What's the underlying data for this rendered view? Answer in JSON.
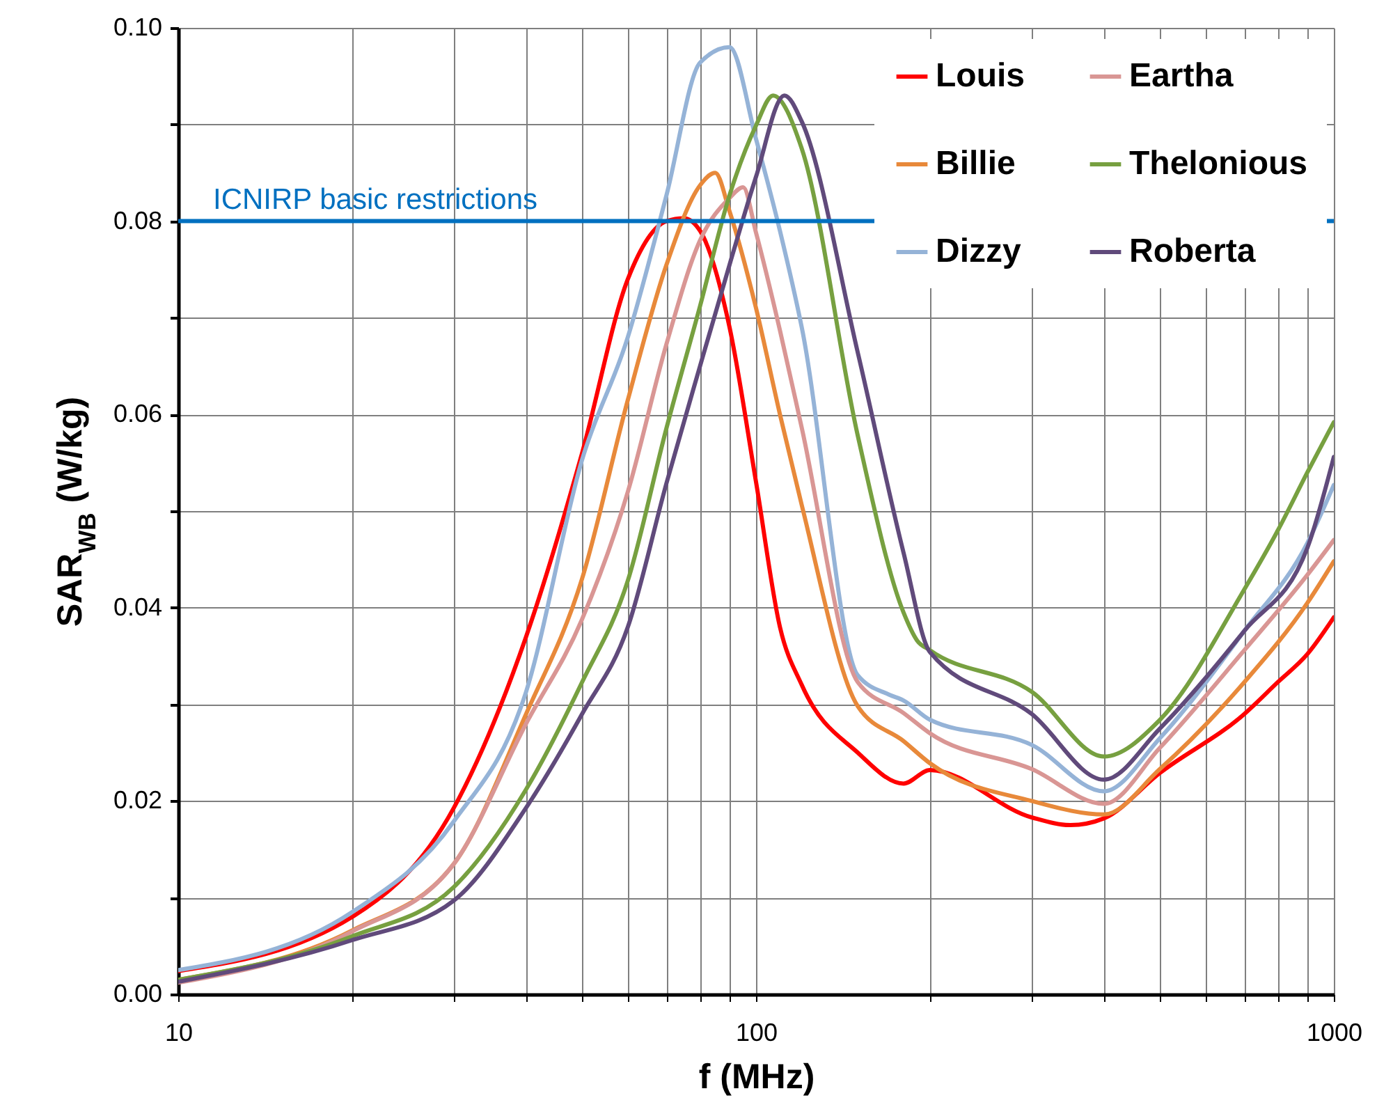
{
  "chart_data": {
    "type": "line",
    "xlabel": "f (MHz)",
    "ylabel": "SAR$_{WB}$ (W/kg)",
    "log": "x",
    "grid": true,
    "legend": "top right",
    "line_style": "solid",
    "xlim": [
      10,
      1000
    ],
    "xticks": [
      10,
      {
        "value": 20,
        "label": null
      },
      {
        "value": 30,
        "label": null
      },
      {
        "value": 40,
        "label": null
      },
      {
        "value": 50,
        "label": null
      },
      {
        "value": 60,
        "label": null
      },
      {
        "value": 70,
        "label": null
      },
      {
        "value": 80,
        "label": null
      },
      {
        "value": 90,
        "label": null
      },
      100,
      {
        "value": 200,
        "label": null
      },
      {
        "value": 300,
        "label": null
      },
      {
        "value": 400,
        "label": null
      },
      {
        "value": 500,
        "label": null
      },
      {
        "value": 600,
        "label": null
      },
      {
        "value": 700,
        "label": null
      },
      {
        "value": 800,
        "label": null
      },
      {
        "value": 900,
        "label": null
      },
      1000
    ],
    "ylim": [
      0,
      0.1
    ],
    "yticks": [
      {
        "value": 0,
        "label": "0.00"
      },
      {
        "value": 0.01,
        "label": null
      },
      {
        "value": 0.02,
        "label": "0.02"
      },
      {
        "value": 0.03,
        "label": null
      },
      {
        "value": 0.04,
        "label": "0.04"
      },
      {
        "value": 0.05,
        "label": null
      },
      {
        "value": 0.06,
        "label": "0.06"
      },
      {
        "value": 0.07,
        "label": null
      },
      {
        "value": 0.08,
        "label": "0.08"
      },
      {
        "value": 0.09,
        "label": null
      },
      {
        "value": 0.1,
        "label": "0.10"
      }
    ],
    "ref_lines": [
      {
        "axis": "y",
        "value": 0.08,
        "label": "ICNIRP basic restrictions",
        "color": "#0070c0"
      }
    ],
    "series": [
      {
        "name": "Louis",
        "color": "#ff0000",
        "x": [
          10,
          20,
          30,
          40,
          50,
          60,
          70,
          75,
          80,
          90,
          100,
          110,
          120,
          150,
          180,
          200,
          300,
          350,
          400,
          500,
          700,
          800,
          900,
          1000
        ],
        "values": [
          0.0024,
          0.008,
          0.0193,
          0.037,
          0.056,
          0.074,
          0.08,
          0.0803,
          0.079,
          0.069,
          0.053,
          0.038,
          0.032,
          0.025,
          0.0218,
          0.0232,
          0.0183,
          0.0175,
          0.0182,
          0.0229,
          0.029,
          0.0323,
          0.0352,
          0.039
        ]
      },
      {
        "name": "Billie",
        "color": "#e8893a",
        "x": [
          10,
          20,
          30,
          40,
          50,
          60,
          70,
          80,
          85,
          90,
          100,
          110,
          120,
          150,
          180,
          200,
          300,
          400,
          500,
          700,
          900,
          1000
        ],
        "values": [
          0.0015,
          0.0066,
          0.0135,
          0.029,
          0.043,
          0.0615,
          0.0755,
          0.0837,
          0.085,
          0.081,
          0.071,
          0.06,
          0.0506,
          0.0298,
          0.0262,
          0.0239,
          0.02,
          0.0186,
          0.0233,
          0.0323,
          0.0405,
          0.0448
        ]
      },
      {
        "name": "Dizzy",
        "color": "#95b3d7",
        "x": [
          10,
          20,
          30,
          40,
          50,
          60,
          70,
          80,
          90,
          100,
          110,
          120,
          150,
          170,
          180,
          200,
          300,
          400,
          500,
          700,
          900,
          1000
        ],
        "values": [
          0.0025,
          0.0085,
          0.0179,
          0.0313,
          0.0553,
          0.068,
          0.0827,
          0.0964,
          0.098,
          0.0885,
          0.079,
          0.069,
          0.033,
          0.031,
          0.0304,
          0.0284,
          0.0258,
          0.021,
          0.0265,
          0.0376,
          0.0467,
          0.0527
        ]
      },
      {
        "name": "Eartha",
        "color": "#d99694",
        "x": [
          10,
          20,
          30,
          40,
          50,
          60,
          70,
          80,
          90,
          95,
          100,
          110,
          120,
          150,
          180,
          200,
          300,
          400,
          500,
          700,
          900,
          1000
        ],
        "values": [
          0.0012,
          0.0065,
          0.0135,
          0.028,
          0.0388,
          0.052,
          0.0673,
          0.078,
          0.0824,
          0.0835,
          0.0788,
          0.0687,
          0.0586,
          0.0323,
          0.0291,
          0.027,
          0.0233,
          0.0197,
          0.0255,
          0.0356,
          0.0434,
          0.047
        ]
      },
      {
        "name": "Thelonious",
        "color": "#77a040",
        "x": [
          10,
          20,
          30,
          40,
          50,
          60,
          70,
          80,
          90,
          100,
          107,
          120,
          150,
          180,
          190,
          200,
          300,
          400,
          500,
          700,
          800,
          900,
          1000
        ],
        "values": [
          0.0015,
          0.006,
          0.0111,
          0.0212,
          0.0323,
          0.0428,
          0.0586,
          0.0712,
          0.0827,
          0.0899,
          0.093,
          0.0875,
          0.0578,
          0.0395,
          0.0366,
          0.0356,
          0.0313,
          0.0246,
          0.0284,
          0.0419,
          0.048,
          0.054,
          0.0592
        ]
      },
      {
        "name": "Roberta",
        "color": "#604a7b",
        "x": [
          10,
          20,
          30,
          40,
          50,
          60,
          70,
          80,
          90,
          100,
          112,
          120,
          150,
          180,
          200,
          300,
          400,
          500,
          700,
          900,
          1000
        ],
        "values": [
          0.0013,
          0.0056,
          0.0097,
          0.0193,
          0.029,
          0.038,
          0.0529,
          0.065,
          0.0755,
          0.0846,
          0.093,
          0.0903,
          0.0664,
          0.0457,
          0.0354,
          0.029,
          0.0222,
          0.0275,
          0.0376,
          0.0462,
          0.0556
        ]
      }
    ]
  }
}
